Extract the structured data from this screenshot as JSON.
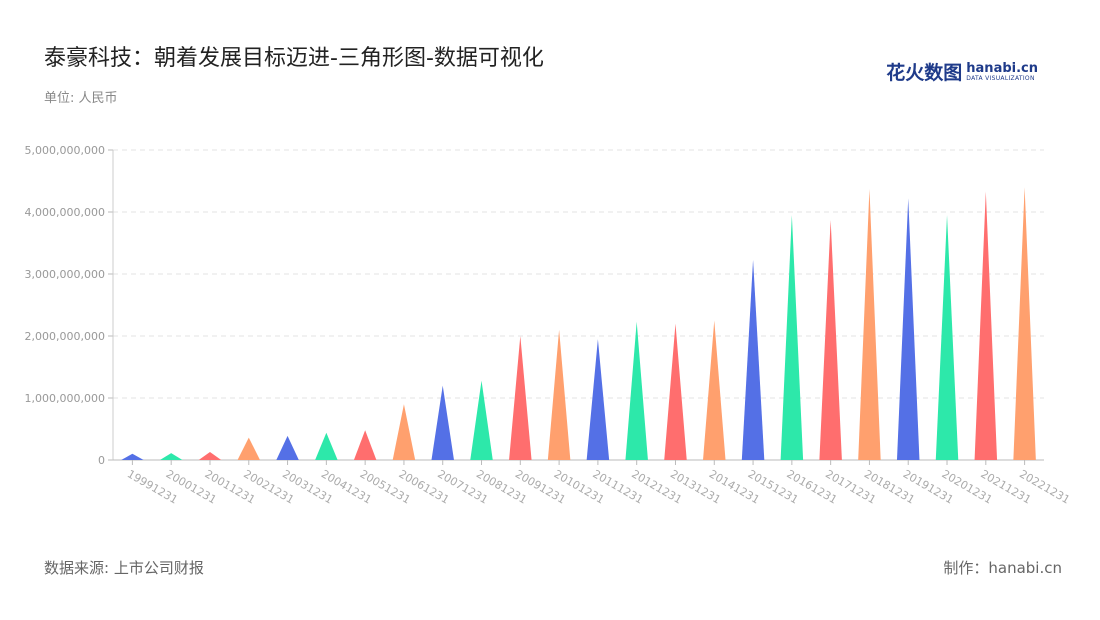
{
  "title": "泰豪科技：朝着发展目标迈进-三角形图-数据可视化",
  "unit_label": "单位: 人民币",
  "logo": {
    "cn": "花火数图",
    "en": "hanabi.cn",
    "tagline": "DATA VISUALIZATION"
  },
  "footer": {
    "source": "数据来源: 上市公司财报",
    "credit": "制作：hanabi.cn"
  },
  "colors": [
    "#5470e6",
    "#2de8aa",
    "#ff6e6e",
    "#ffa06e"
  ],
  "chart_data": {
    "type": "bar",
    "mark_shape": "triangle",
    "title": "泰豪科技：朝着发展目标迈进-三角形图-数据可视化",
    "xlabel": "",
    "ylabel": "",
    "ylim": [
      0,
      5000000000
    ],
    "yticks": [
      {
        "value": 0,
        "label": "0"
      },
      {
        "value": 1000000000,
        "label": "1,000,000,000"
      },
      {
        "value": 2000000000,
        "label": "2,000,000,000"
      },
      {
        "value": 3000000000,
        "label": "3,000,000,000"
      },
      {
        "value": 4000000000,
        "label": "4,000,000,000"
      },
      {
        "value": 5000000000,
        "label": "5,000,000,000"
      }
    ],
    "grid": true,
    "categories": [
      "19991231",
      "20001231",
      "20011231",
      "20021231",
      "20031231",
      "20041231",
      "20051231",
      "20061231",
      "20071231",
      "20081231",
      "20091231",
      "20101231",
      "20111231",
      "20121231",
      "20131231",
      "20141231",
      "20151231",
      "20161231",
      "20171231",
      "20181231",
      "20191231",
      "20201231",
      "20211231",
      "20221231"
    ],
    "values": [
      100000000,
      110000000,
      130000000,
      360000000,
      390000000,
      440000000,
      480000000,
      900000000,
      1200000000,
      1280000000,
      2000000000,
      2100000000,
      1950000000,
      2230000000,
      2200000000,
      2250000000,
      3230000000,
      3950000000,
      3870000000,
      4370000000,
      4220000000,
      3950000000,
      4330000000,
      4400000000
    ]
  }
}
